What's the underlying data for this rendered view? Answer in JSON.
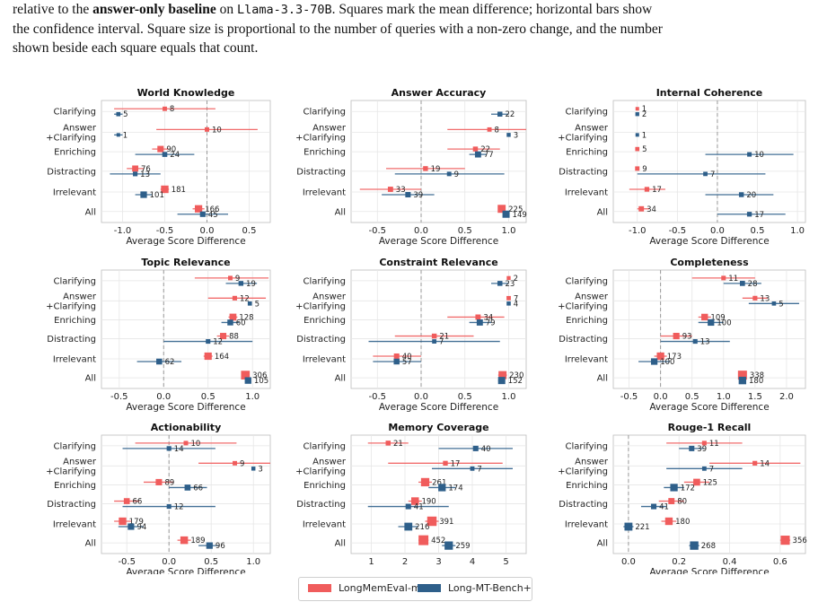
{
  "caption": {
    "line1_prefix": "relative to the ",
    "line1_bold": "answer-only baseline",
    "line1_mid": " on ",
    "line1_model": "Llama-3.3-70B",
    "line1_suffix": ". Squares mark the mean difference; horizontal bars show",
    "line2": "the confidence interval. Square size is proportional to the number of queries with a non-zero change, and the number",
    "line3": "shown beside each square equals that count."
  },
  "colors": {
    "longmemeval": "#f05c5c",
    "longmt": "#2e5f8a",
    "refline": "#999999",
    "grid": "#e6e6e6"
  },
  "legend": {
    "series_a": "LongMemEval-m",
    "series_b": "Long-MT-Bench+"
  },
  "chart_data": [
    {
      "type": "scatter",
      "title": "World Knowledge",
      "xlabel": "Average Score Difference",
      "categories": [
        "Clarifying",
        "Answer\n+Clarifying",
        "Enriching",
        "Distracting",
        "Irrelevant",
        "All"
      ],
      "xlim": [
        -1.25,
        0.75
      ],
      "xticks": [
        -1.0,
        -0.5,
        0.0,
        0.5
      ],
      "series": [
        {
          "name": "LongMemEval-m",
          "mean": [
            -0.5,
            0.0,
            -0.55,
            -0.85,
            -0.5,
            -0.1
          ],
          "ci_low": [
            -1.1,
            -0.6,
            -0.65,
            -0.95,
            -0.55,
            -0.17
          ],
          "ci_high": [
            0.1,
            0.6,
            -0.45,
            -0.75,
            -0.45,
            -0.03
          ],
          "count": [
            8,
            10,
            90,
            76,
            181,
            166
          ]
        },
        {
          "name": "Long-MT-Bench+",
          "mean": [
            -1.05,
            -1.05,
            -0.5,
            -0.85,
            -0.75,
            -0.05
          ],
          "ci_low": [
            -1.1,
            -1.1,
            -0.85,
            -1.15,
            -0.85,
            -0.35
          ],
          "ci_high": [
            -1.0,
            -1.0,
            -0.15,
            -0.55,
            -0.65,
            0.25
          ],
          "count": [
            5,
            1,
            24,
            13,
            101,
            45
          ]
        }
      ]
    },
    {
      "type": "scatter",
      "title": "Answer Accuracy",
      "xlabel": "Average Score Difference",
      "categories": [
        "Clarifying",
        "Answer\n+Clarifying",
        "Enriching",
        "Distracting",
        "Irrelevant",
        "All"
      ],
      "xlim": [
        -0.8,
        1.2
      ],
      "xticks": [
        -0.5,
        0.0,
        0.5,
        1.0
      ],
      "series": [
        {
          "name": "LongMemEval-m",
          "mean": [
            null,
            0.78,
            0.62,
            0.05,
            -0.35,
            0.92
          ],
          "ci_low": [
            null,
            0.3,
            0.3,
            -0.4,
            -0.7,
            0.88
          ],
          "ci_high": [
            null,
            1.2,
            0.9,
            0.5,
            0.0,
            0.96
          ],
          "count": [
            null,
            8,
            22,
            19,
            33,
            225
          ]
        },
        {
          "name": "Long-MT-Bench+",
          "mean": [
            0.9,
            1.0,
            0.65,
            0.32,
            -0.15,
            0.97
          ],
          "ci_low": [
            0.8,
            0.98,
            0.55,
            -0.3,
            -0.45,
            0.95
          ],
          "ci_high": [
            1.0,
            1.02,
            0.75,
            0.95,
            0.15,
            0.99
          ],
          "count": [
            22,
            3,
            77,
            9,
            39,
            149
          ]
        }
      ]
    },
    {
      "type": "scatter",
      "title": "Internal Coherence",
      "xlabel": "Average Score Difference",
      "categories": [
        "Clarifying",
        "Answer\n+Clarifying",
        "Enriching",
        "Distracting",
        "Irrelevant",
        "All"
      ],
      "xlim": [
        -1.3,
        1.1
      ],
      "xticks": [
        -1.0,
        -0.5,
        0.0,
        0.5,
        1.0
      ],
      "series": [
        {
          "name": "LongMemEval-m",
          "mean": [
            -1.0,
            null,
            -1.0,
            -1.0,
            -0.88,
            -0.95
          ],
          "ci_low": [
            -1.0,
            null,
            -1.0,
            -1.0,
            -1.1,
            -1.0
          ],
          "ci_high": [
            -1.0,
            null,
            -1.0,
            -1.0,
            -0.65,
            -0.85
          ],
          "count": [
            1,
            null,
            5,
            9,
            17,
            34
          ]
        },
        {
          "name": "Long-MT-Bench+",
          "mean": [
            -1.0,
            -1.0,
            0.4,
            -0.15,
            0.3,
            0.4
          ],
          "ci_low": [
            -1.0,
            -1.0,
            -0.15,
            -1.0,
            -0.15,
            0.0
          ],
          "ci_high": [
            -1.0,
            -1.0,
            0.95,
            0.6,
            0.7,
            0.85
          ],
          "count": [
            2,
            1,
            10,
            7,
            20,
            17
          ]
        }
      ]
    },
    {
      "type": "scatter",
      "title": "Topic Relevance",
      "xlabel": "Average Score Difference",
      "categories": [
        "Clarifying",
        "Answer\n+Clarifying",
        "Enriching",
        "Distracting",
        "Irrelevant",
        "All"
      ],
      "xlim": [
        -0.7,
        1.2
      ],
      "xticks": [
        -0.5,
        0.0,
        0.5,
        1.0
      ],
      "series": [
        {
          "name": "LongMemEval-m",
          "mean": [
            0.75,
            0.8,
            0.78,
            0.67,
            0.5,
            0.92
          ],
          "ci_low": [
            0.35,
            0.5,
            0.73,
            0.6,
            0.45,
            0.89
          ],
          "ci_high": [
            1.18,
            1.15,
            0.83,
            0.74,
            0.55,
            0.95
          ],
          "count": [
            9,
            12,
            128,
            88,
            164,
            306
          ]
        },
        {
          "name": "Long-MT-Bench+",
          "mean": [
            0.87,
            0.97,
            0.75,
            0.5,
            -0.05,
            0.95
          ],
          "ci_low": [
            0.7,
            0.95,
            0.65,
            0.0,
            -0.3,
            0.92
          ],
          "ci_high": [
            1.05,
            0.99,
            0.85,
            1.0,
            0.2,
            0.98
          ],
          "count": [
            19,
            5,
            60,
            12,
            62,
            105
          ]
        }
      ]
    },
    {
      "type": "scatter",
      "title": "Constraint Relevance",
      "xlabel": "Average Score Difference",
      "categories": [
        "Clarifying",
        "Answer\n+Clarifying",
        "Enriching",
        "Distracting",
        "Irrelevant",
        "All"
      ],
      "xlim": [
        -0.8,
        1.2
      ],
      "xticks": [
        -0.5,
        0.0,
        0.5,
        1.0
      ],
      "series": [
        {
          "name": "LongMemEval-m",
          "mean": [
            1.0,
            1.0,
            0.65,
            0.15,
            -0.28,
            0.93
          ],
          "ci_low": [
            1.0,
            1.0,
            0.3,
            -0.3,
            -0.55,
            0.88
          ],
          "ci_high": [
            1.0,
            1.0,
            0.95,
            0.6,
            0.0,
            0.98
          ],
          "count": [
            2,
            7,
            34,
            21,
            40,
            230
          ]
        },
        {
          "name": "Long-MT-Bench+",
          "mean": [
            0.9,
            1.0,
            0.67,
            0.15,
            -0.28,
            0.92
          ],
          "ci_low": [
            0.8,
            1.0,
            0.55,
            -0.6,
            -0.55,
            0.88
          ],
          "ci_high": [
            1.0,
            1.0,
            0.8,
            0.9,
            0.0,
            0.96
          ],
          "count": [
            23,
            4,
            79,
            7,
            57,
            152
          ]
        }
      ]
    },
    {
      "type": "scatter",
      "title": "Completeness",
      "xlabel": "Average Score Difference",
      "categories": [
        "Clarifying",
        "Answer\n+Clarifying",
        "Enriching",
        "Distracting",
        "Irrelevant",
        "All"
      ],
      "xlim": [
        -0.75,
        2.3
      ],
      "xticks": [
        -0.5,
        0.0,
        0.5,
        1.0,
        1.5,
        2.0
      ],
      "series": [
        {
          "name": "LongMemEval-m",
          "mean": [
            1.0,
            1.5,
            0.7,
            0.25,
            0.0,
            1.3
          ],
          "ci_low": [
            0.5,
            1.3,
            0.6,
            0.0,
            -0.1,
            1.25
          ],
          "ci_high": [
            1.5,
            1.7,
            0.8,
            0.5,
            0.1,
            1.35
          ],
          "count": [
            11,
            13,
            109,
            93,
            173,
            338
          ]
        },
        {
          "name": "Long-MT-Bench+",
          "mean": [
            1.3,
            1.8,
            0.8,
            0.55,
            -0.1,
            1.3
          ],
          "ci_low": [
            1.0,
            1.4,
            0.6,
            0.0,
            -0.35,
            1.25
          ],
          "ci_high": [
            1.6,
            2.2,
            1.0,
            1.1,
            0.15,
            1.35
          ],
          "count": [
            28,
            5,
            100,
            13,
            100,
            180
          ]
        }
      ]
    },
    {
      "type": "scatter",
      "title": "Actionability",
      "xlabel": "Average Score Difference",
      "categories": [
        "Clarifying",
        "Answer\n+Clarifying",
        "Enriching",
        "Distracting",
        "Irrelevant",
        "All"
      ],
      "xlim": [
        -0.8,
        1.2
      ],
      "xticks": [
        -0.5,
        0.0,
        0.5,
        1.0
      ],
      "series": [
        {
          "name": "LongMemEval-m",
          "mean": [
            0.2,
            0.78,
            -0.12,
            -0.5,
            -0.55,
            0.18
          ],
          "ci_low": [
            -0.4,
            0.35,
            -0.3,
            -0.65,
            -0.65,
            0.1
          ],
          "ci_high": [
            0.8,
            1.2,
            0.05,
            -0.35,
            -0.45,
            0.26
          ],
          "count": [
            10,
            9,
            89,
            66,
            179,
            189
          ]
        },
        {
          "name": "Long-MT-Bench+",
          "mean": [
            0.0,
            1.0,
            0.22,
            0.0,
            -0.45,
            0.48
          ],
          "ci_low": [
            -0.55,
            0.98,
            0.0,
            -0.55,
            -0.6,
            0.35
          ],
          "ci_high": [
            0.55,
            1.02,
            0.45,
            0.55,
            -0.3,
            0.6
          ],
          "count": [
            14,
            3,
            66,
            12,
            94,
            96
          ]
        }
      ]
    },
    {
      "type": "scatter",
      "title": "Memory Coverage",
      "xlabel": "",
      "categories": [
        "Clarifying",
        "Answer\n+Clarifying",
        "Enriching",
        "Distracting",
        "Irrelevant",
        "All"
      ],
      "xlim": [
        0.4,
        5.6
      ],
      "xticks": [
        1,
        2,
        3,
        4,
        5
      ],
      "series": [
        {
          "name": "LongMemEval-m",
          "mean": [
            1.5,
            3.2,
            2.6,
            2.3,
            2.8,
            2.55
          ],
          "ci_low": [
            0.9,
            1.5,
            2.4,
            2.1,
            2.6,
            2.4
          ],
          "ci_high": [
            2.1,
            4.9,
            2.8,
            2.5,
            3.0,
            2.7
          ],
          "count": [
            21,
            17,
            261,
            190,
            391,
            452
          ]
        },
        {
          "name": "Long-MT-Bench+",
          "mean": [
            4.1,
            4.0,
            3.1,
            2.1,
            2.1,
            3.3
          ],
          "ci_low": [
            3.0,
            2.8,
            2.7,
            0.9,
            1.8,
            3.1
          ],
          "ci_high": [
            5.2,
            5.2,
            3.5,
            3.3,
            2.4,
            3.5
          ],
          "count": [
            40,
            7,
            174,
            41,
            216,
            259
          ]
        }
      ]
    },
    {
      "type": "scatter",
      "title": "Rouge-1 Recall",
      "xlabel": "Average Score Difference",
      "categories": [
        "Clarifying",
        "Answer\n+Clarifying",
        "Enriching",
        "Distracting",
        "Irrelevant",
        "All"
      ],
      "xlim": [
        -0.06,
        0.7
      ],
      "xticks": [
        0.0,
        0.2,
        0.4,
        0.6
      ],
      "series": [
        {
          "name": "LongMemEval-m",
          "mean": [
            0.3,
            0.5,
            0.27,
            0.17,
            0.16,
            0.62
          ],
          "ci_low": [
            0.15,
            0.32,
            0.22,
            0.12,
            0.13,
            0.6
          ],
          "ci_high": [
            0.45,
            0.68,
            0.32,
            0.22,
            0.19,
            0.64
          ],
          "count": [
            11,
            14,
            125,
            80,
            180,
            356
          ]
        },
        {
          "name": "Long-MT-Bench+",
          "mean": [
            0.25,
            0.3,
            0.18,
            0.1,
            0.0,
            0.26
          ],
          "ci_low": [
            0.2,
            0.15,
            0.14,
            0.05,
            -0.02,
            0.24
          ],
          "ci_high": [
            0.3,
            0.45,
            0.22,
            0.15,
            0.02,
            0.28
          ],
          "count": [
            39,
            7,
            172,
            41,
            221,
            268
          ]
        }
      ]
    }
  ]
}
